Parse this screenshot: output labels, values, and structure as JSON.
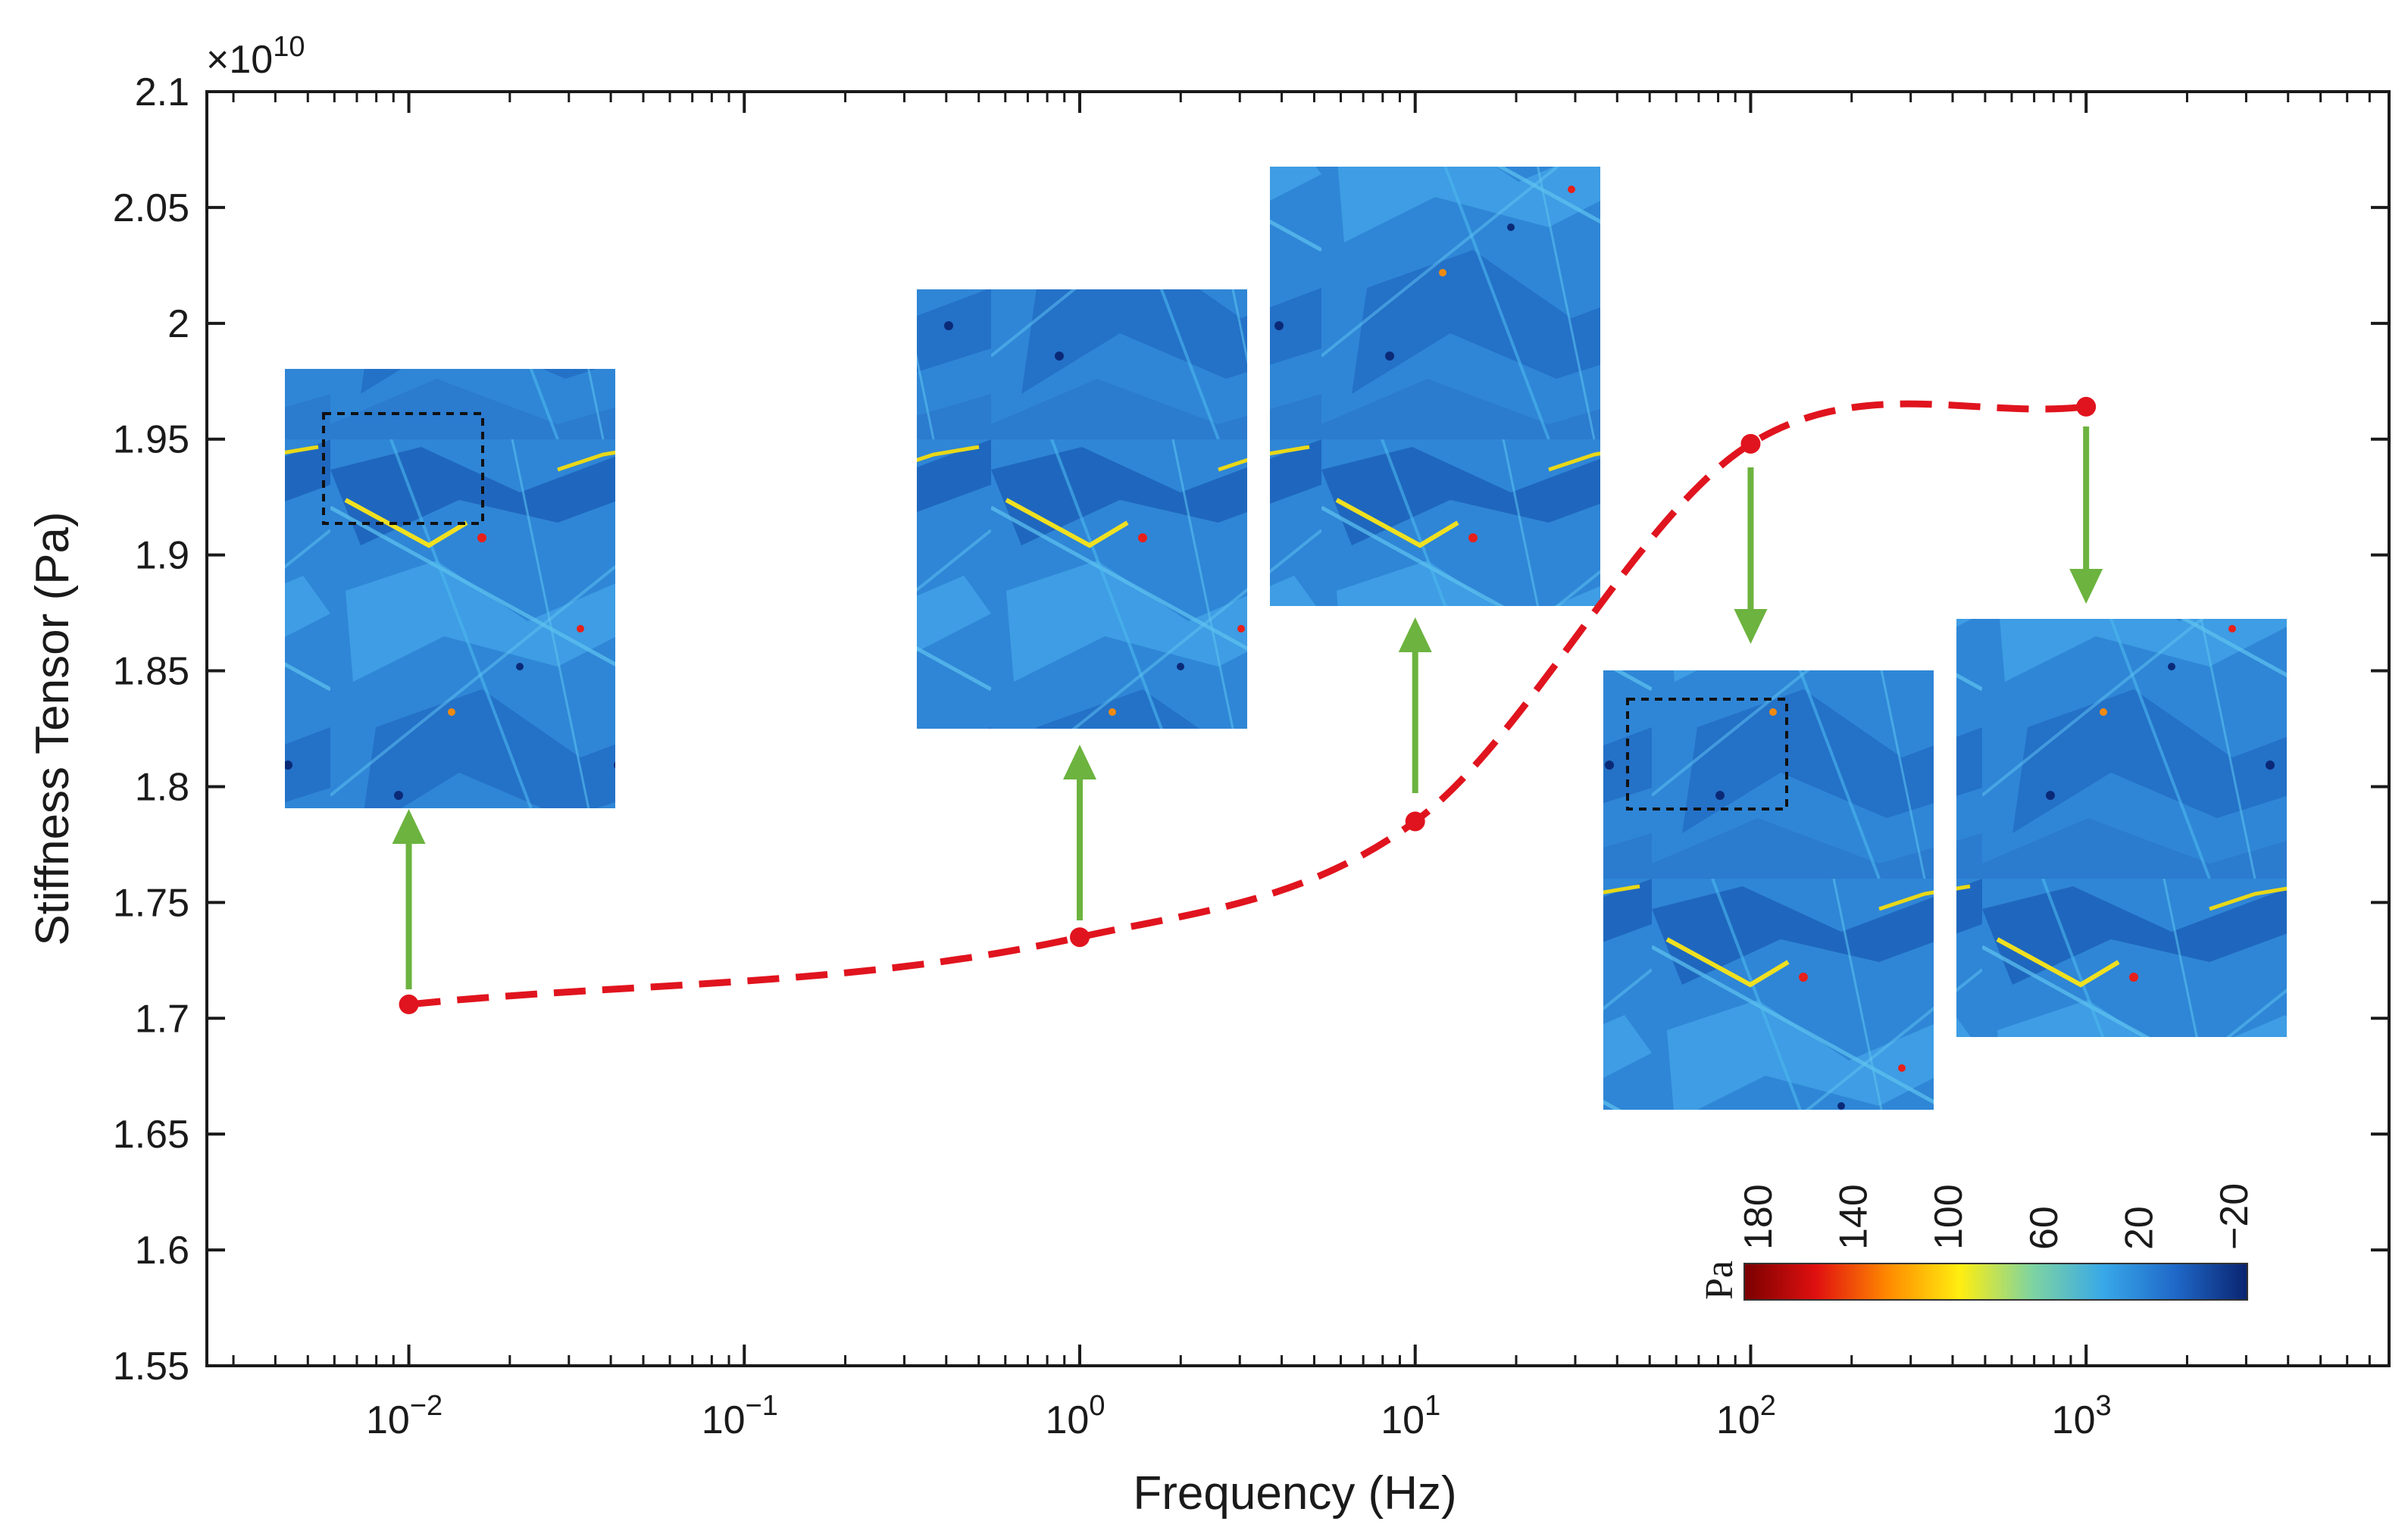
{
  "chart_data": {
    "type": "line",
    "title": "",
    "xlabel": "Frequency (Hz)",
    "ylabel": "Stiffness Tensor (Pa)",
    "xscale": "log",
    "xlim": [
      0.0025,
      8000
    ],
    "ylim": [
      1.55,
      2.1
    ],
    "y_multiplier": "×10",
    "y_multiplier_exp": "10",
    "x_ticks": [
      {
        "base": "10",
        "exp": "−2",
        "value": 0.01
      },
      {
        "base": "10",
        "exp": "−1",
        "value": 0.1
      },
      {
        "base": "10",
        "exp": "0",
        "value": 1
      },
      {
        "base": "10",
        "exp": "1",
        "value": 10
      },
      {
        "base": "10",
        "exp": "2",
        "value": 100
      },
      {
        "base": "10",
        "exp": "3",
        "value": 1000
      }
    ],
    "y_ticks": [
      "1.55",
      "1.6",
      "1.65",
      "1.7",
      "1.75",
      "1.8",
      "1.85",
      "1.9",
      "1.95",
      "2",
      "2.05",
      "2.1"
    ],
    "series": [
      {
        "name": "Stiffness tensor",
        "color": "#e0141e",
        "style": "dashed",
        "points": [
          {
            "x": 0.01,
            "y": 1.706
          },
          {
            "x": 1,
            "y": 1.735
          },
          {
            "x": 10,
            "y": 1.785
          },
          {
            "x": 100,
            "y": 1.948
          },
          {
            "x": 1000,
            "y": 1.964
          }
        ]
      }
    ],
    "arrow_color": "#6cb33f",
    "colorbar": {
      "unit": "Pa",
      "labels": [
        "180",
        "140",
        "100",
        "60",
        "20",
        "−20"
      ],
      "colors": [
        "#7a0000",
        "#e01010",
        "#ff8a00",
        "#ffee10",
        "#7fd4a0",
        "#38a8e8",
        "#1f68c8",
        "#0a2470"
      ]
    },
    "insets": [
      {
        "name": "stress-map-0.01hz",
        "freq": 0.01,
        "highlight": true
      },
      {
        "name": "stress-map-1hz",
        "freq": 1,
        "highlight": false
      },
      {
        "name": "stress-map-10hz",
        "freq": 10,
        "highlight": false
      },
      {
        "name": "stress-map-100hz",
        "freq": 100,
        "highlight": true
      },
      {
        "name": "stress-map-1000hz",
        "freq": 1000,
        "highlight": false
      }
    ]
  }
}
